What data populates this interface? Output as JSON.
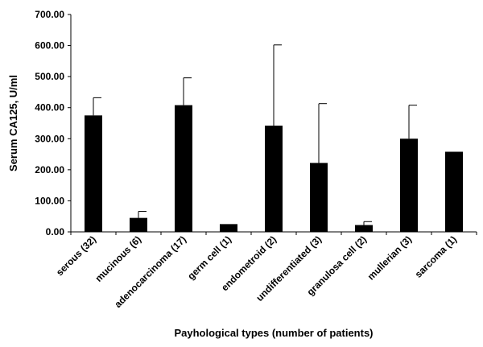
{
  "chart_data": {
    "type": "bar",
    "title": "",
    "xlabel": "Payhological types (number of patients)",
    "ylabel": "Serum CA125, U/ml",
    "ylim": [
      0,
      700
    ],
    "yticks": [
      "0.00",
      "100.00",
      "200.00",
      "300.00",
      "400.00",
      "500.00",
      "600.00",
      "700.00"
    ],
    "grid": false,
    "legend": "none",
    "bar_color": "#000000",
    "categories": [
      "serous (32)",
      "mucinous (6)",
      "adenocarcinoma (17)",
      "germ cell (1)",
      "endometroid (2)",
      "undifferentiated (3)",
      "granulosa cell (2)",
      "mullerian (3)",
      "sarcoma (1)"
    ],
    "values": [
      375,
      45,
      408,
      25,
      342,
      222,
      22,
      300,
      258
    ],
    "error_upper": [
      432,
      66,
      496,
      null,
      602,
      413,
      33,
      408,
      null
    ]
  }
}
